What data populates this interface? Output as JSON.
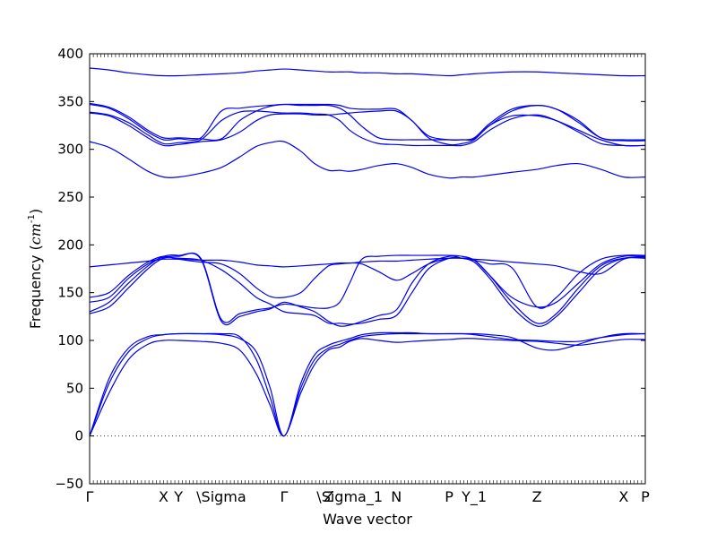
{
  "chart_data": {
    "type": "line",
    "title": "",
    "xlabel": "Wave vector",
    "ylabel": "Frequency",
    "ylabel_unit": "cm",
    "ylabel_unit_exp": "-1",
    "ylim": [
      -50,
      400
    ],
    "yticks": [
      -50,
      0,
      50,
      100,
      150,
      200,
      250,
      300,
      350,
      400
    ],
    "xlim": [
      0,
      1
    ],
    "grid": false,
    "legend": "none",
    "zero_line": {
      "y": 0,
      "style": "dotted",
      "color": "#333333"
    },
    "x_tick_labels": [
      {
        "label": "Γ",
        "x": 0.0
      },
      {
        "label": "X",
        "x": 0.133
      },
      {
        "label": "Y",
        "x": 0.16
      },
      {
        "label": "\\Sigma",
        "x": 0.237
      },
      {
        "label": "Γ",
        "x": 0.35
      },
      {
        "label": "Z",
        "x": 0.43
      },
      {
        "label": "\\Sigma_1",
        "x": 0.468
      },
      {
        "label": "N",
        "x": 0.552
      },
      {
        "label": "P",
        "x": 0.647
      },
      {
        "label": "Y_1",
        "x": 0.692
      },
      {
        "label": "Z",
        "x": 0.805
      },
      {
        "label": "X",
        "x": 0.961
      },
      {
        "label": "P",
        "x": 1.0
      }
    ],
    "line_color": "#0000ee",
    "x": [
      0.0,
      0.035,
      0.07,
      0.105,
      0.133,
      0.16,
      0.2,
      0.237,
      0.27,
      0.3,
      0.325,
      0.35,
      0.38,
      0.405,
      0.43,
      0.45,
      0.468,
      0.49,
      0.52,
      0.552,
      0.58,
      0.61,
      0.647,
      0.67,
      0.692,
      0.72,
      0.76,
      0.805,
      0.84,
      0.88,
      0.92,
      0.961,
      1.0
    ],
    "series": [
      {
        "values": [
          0,
          55,
          88,
          102,
          106,
          107,
          107,
          107,
          104,
          80,
          40,
          0,
          50,
          80,
          92,
          96,
          100,
          104,
          106,
          107,
          107,
          107,
          107,
          107,
          107,
          106,
          103,
          92,
          90,
          96,
          103,
          107,
          107
        ]
      },
      {
        "values": [
          0,
          45,
          80,
          96,
          100,
          100,
          99,
          97,
          90,
          65,
          32,
          0,
          45,
          75,
          90,
          93,
          99,
          102,
          100,
          98,
          99,
          100,
          101,
          102,
          102,
          101,
          100,
          99,
          97,
          95,
          98,
          101,
          101
        ]
      },
      {
        "values": [
          0,
          60,
          92,
          104,
          106,
          107,
          107,
          106,
          102,
          88,
          50,
          0,
          55,
          85,
          95,
          99,
          102,
          106,
          108,
          108,
          108,
          107,
          107,
          107,
          106,
          104,
          101,
          100,
          99,
          99,
          103,
          106,
          107
        ]
      },
      {
        "values": [
          130,
          140,
          160,
          178,
          188,
          189,
          185,
          120,
          125,
          130,
          133,
          140,
          135,
          130,
          120,
          115,
          116,
          120,
          126,
          132,
          160,
          180,
          188,
          186,
          182,
          165,
          135,
          115,
          125,
          150,
          175,
          186,
          187
        ]
      },
      {
        "values": [
          140,
          145,
          165,
          180,
          187,
          188,
          186,
          122,
          128,
          132,
          134,
          138,
          136,
          134,
          134,
          140,
          160,
          185,
          188,
          189,
          189,
          189,
          189,
          188,
          184,
          168,
          145,
          135,
          140,
          160,
          180,
          188,
          188
        ]
      },
      {
        "values": [
          145,
          150,
          168,
          182,
          188,
          185,
          182,
          180,
          170,
          155,
          146,
          145,
          150,
          165,
          178,
          180,
          181,
          180,
          172,
          163,
          170,
          180,
          186,
          186,
          184,
          180,
          176,
          135,
          145,
          170,
          185,
          189,
          189
        ]
      },
      {
        "values": [
          177,
          179,
          181,
          183,
          185,
          185,
          184,
          184,
          182,
          179,
          178,
          177,
          178,
          179,
          180,
          181,
          181,
          182,
          183,
          183,
          184,
          185,
          186,
          186,
          185,
          184,
          182,
          180,
          178,
          172,
          170,
          185,
          188
        ]
      },
      {
        "values": [
          128,
          135,
          155,
          175,
          186,
          186,
          184,
          174,
          160,
          145,
          138,
          130,
          128,
          126,
          118,
          118,
          117,
          118,
          122,
          126,
          150,
          175,
          186,
          186,
          184,
          168,
          140,
          118,
          128,
          155,
          178,
          186,
          186
        ]
      },
      {
        "values": [
          308,
          302,
          290,
          277,
          271,
          271,
          275,
          281,
          292,
          303,
          307,
          308,
          298,
          285,
          278,
          278,
          277,
          279,
          283,
          285,
          281,
          274,
          270,
          271,
          271,
          273,
          276,
          279,
          283,
          285,
          279,
          271,
          271
        ]
      },
      {
        "values": [
          338,
          335,
          325,
          312,
          304,
          305,
          308,
          310,
          318,
          330,
          336,
          337,
          337,
          336,
          336,
          337,
          338,
          339,
          340,
          340,
          330,
          312,
          305,
          306,
          310,
          325,
          335,
          335,
          330,
          320,
          310,
          304,
          304
        ]
      },
      {
        "values": [
          339,
          336,
          328,
          315,
          306,
          307,
          310,
          330,
          339,
          340,
          339,
          338,
          338,
          337,
          336,
          330,
          320,
          312,
          306,
          305,
          304,
          304,
          304,
          304,
          308,
          320,
          332,
          336,
          330,
          318,
          306,
          304,
          304
        ]
      },
      {
        "values": [
          347,
          343,
          332,
          318,
          310,
          311,
          312,
          340,
          343,
          345,
          346,
          347,
          346,
          346,
          346,
          343,
          336,
          324,
          312,
          310,
          310,
          310,
          310,
          310,
          311,
          325,
          340,
          346,
          342,
          330,
          312,
          309,
          309
        ]
      },
      {
        "values": [
          348,
          344,
          334,
          320,
          312,
          312,
          311,
          311,
          330,
          340,
          345,
          347,
          347,
          347,
          347,
          346,
          343,
          342,
          342,
          342,
          330,
          314,
          310,
          310,
          312,
          327,
          342,
          346,
          342,
          328,
          312,
          310,
          310
        ]
      },
      {
        "values": [
          385,
          383,
          380,
          378,
          377,
          377,
          378,
          379,
          380,
          382,
          383,
          384,
          383,
          382,
          381,
          381,
          381,
          380,
          380,
          379,
          379,
          378,
          377,
          378,
          379,
          380,
          381,
          381,
          380,
          379,
          378,
          377,
          377
        ]
      }
    ]
  }
}
